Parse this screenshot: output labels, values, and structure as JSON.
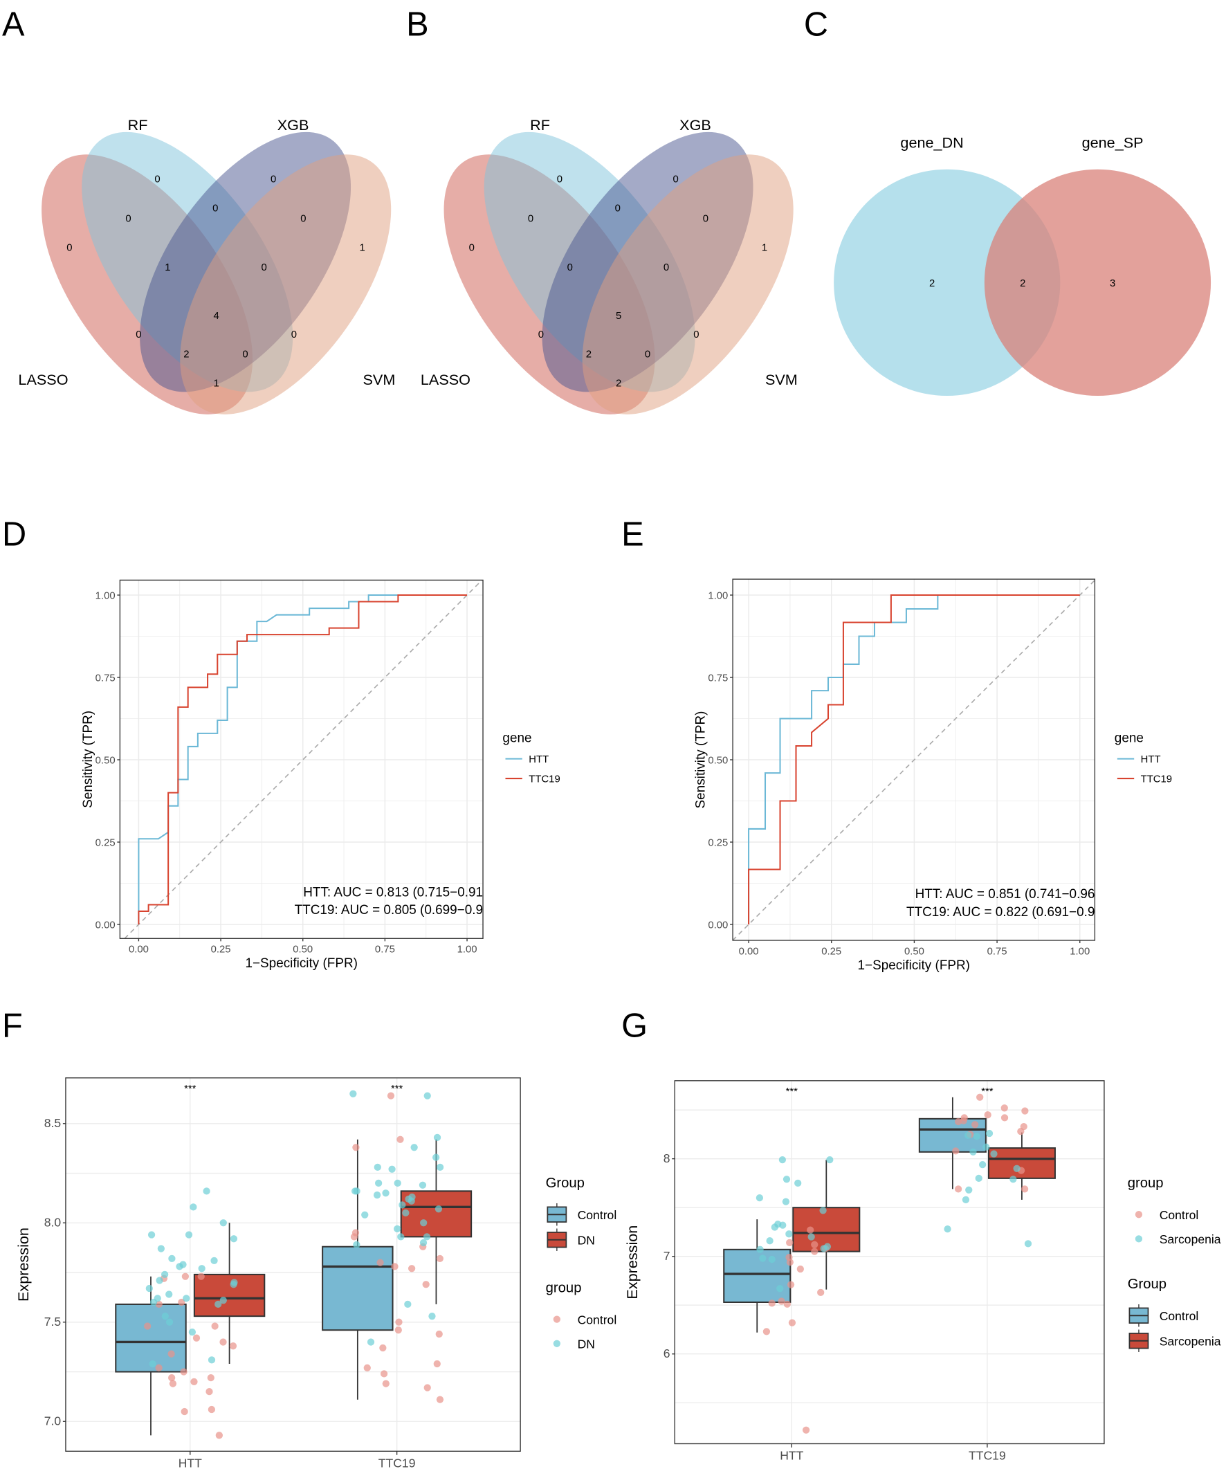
{
  "panel_labels": [
    "A",
    "B",
    "C",
    "D",
    "E",
    "F",
    "G"
  ],
  "colors": {
    "LASSO": "#CD5C50",
    "RF": "#7FC4DC",
    "XGB": "#4A5590",
    "SVM": "#E0A080",
    "gene_DN": "#8ECFE2",
    "gene_SP": "#D9827A",
    "HTT_line": "#6BB8D6",
    "TTC19_line": "#D8432F",
    "box_control": "#78B8D2",
    "box_case": "#C94A3A",
    "point_control": "#E8938A",
    "point_case": "#6CCFD6"
  },
  "venn": [
    {
      "sets": [
        "LASSO",
        "RF",
        "XGB",
        "SVM"
      ],
      "regions": [
        {
          "sets": "RF",
          "count": "0"
        },
        {
          "sets": "XGB",
          "count": "0"
        },
        {
          "sets": "LASSO,RF",
          "count": "0"
        },
        {
          "sets": "RF,XGB",
          "count": "0"
        },
        {
          "sets": "XGB,SVM",
          "count": "0"
        },
        {
          "sets": "LASSO",
          "count": "0"
        },
        {
          "sets": "SVM",
          "count": "1"
        },
        {
          "sets": "LASSO,RF,XGB",
          "count": "1"
        },
        {
          "sets": "RF,XGB,SVM",
          "count": "0"
        },
        {
          "sets": "LASSO,RF,XGB,SVM",
          "count": "4"
        },
        {
          "sets": "LASSO,XGB",
          "count": "0"
        },
        {
          "sets": "RF,SVM",
          "count": "0"
        },
        {
          "sets": "LASSO,XGB,SVM",
          "count": "2"
        },
        {
          "sets": "LASSO,RF,SVM",
          "count": "0"
        },
        {
          "sets": "LASSO,SVM",
          "count": "1"
        }
      ]
    },
    {
      "sets": [
        "LASSO",
        "RF",
        "XGB",
        "SVM"
      ],
      "regions": [
        {
          "sets": "RF",
          "count": "0"
        },
        {
          "sets": "XGB",
          "count": "0"
        },
        {
          "sets": "LASSO,RF",
          "count": "0"
        },
        {
          "sets": "RF,XGB",
          "count": "0"
        },
        {
          "sets": "XGB,SVM",
          "count": "0"
        },
        {
          "sets": "LASSO",
          "count": "0"
        },
        {
          "sets": "SVM",
          "count": "1"
        },
        {
          "sets": "LASSO,RF,XGB",
          "count": "0"
        },
        {
          "sets": "RF,XGB,SVM",
          "count": "0"
        },
        {
          "sets": "LASSO,RF,XGB,SVM",
          "count": "5"
        },
        {
          "sets": "LASSO,XGB",
          "count": "0"
        },
        {
          "sets": "RF,SVM",
          "count": "0"
        },
        {
          "sets": "LASSO,XGB,SVM",
          "count": "2"
        },
        {
          "sets": "LASSO,RF,SVM",
          "count": "0"
        },
        {
          "sets": "LASSO,SVM",
          "count": "2"
        }
      ]
    },
    {
      "sets": [
        "gene_DN",
        "gene_SP"
      ],
      "regions": [
        {
          "sets": "gene_DN",
          "count": "2"
        },
        {
          "sets": "gene_DN,gene_SP",
          "count": "2"
        },
        {
          "sets": "gene_SP",
          "count": "3"
        }
      ]
    }
  ],
  "chart_data": [
    {
      "panel": "D",
      "type": "line",
      "xlabel": "1−Specificity (FPR)",
      "ylabel": "Sensitivity (TPR)",
      "xlim": [
        0,
        1
      ],
      "ylim": [
        0,
        1
      ],
      "xticks": [
        "0.00",
        "0.25",
        "0.50",
        "0.75",
        "1.00"
      ],
      "yticks": [
        "0.00",
        "0.25",
        "0.50",
        "0.75",
        "1.00"
      ],
      "grid": true,
      "legend_title": "gene",
      "legend_position": "right",
      "reference_line": "diagonal dashed",
      "series": [
        {
          "name": "HTT",
          "points": [
            [
              0,
              0
            ],
            [
              0,
              0.26
            ],
            [
              0.06,
              0.26
            ],
            [
              0.09,
              0.28
            ],
            [
              0.09,
              0.36
            ],
            [
              0.12,
              0.36
            ],
            [
              0.12,
              0.44
            ],
            [
              0.15,
              0.44
            ],
            [
              0.15,
              0.54
            ],
            [
              0.18,
              0.54
            ],
            [
              0.18,
              0.58
            ],
            [
              0.24,
              0.58
            ],
            [
              0.24,
              0.62
            ],
            [
              0.27,
              0.62
            ],
            [
              0.27,
              0.72
            ],
            [
              0.3,
              0.72
            ],
            [
              0.3,
              0.86
            ],
            [
              0.36,
              0.86
            ],
            [
              0.36,
              0.92
            ],
            [
              0.39,
              0.92
            ],
            [
              0.42,
              0.94
            ],
            [
              0.52,
              0.94
            ],
            [
              0.52,
              0.96
            ],
            [
              0.64,
              0.96
            ],
            [
              0.64,
              0.98
            ],
            [
              0.7,
              0.98
            ],
            [
              0.7,
              1
            ],
            [
              1,
              1
            ]
          ]
        },
        {
          "name": "TTC19",
          "points": [
            [
              0,
              0
            ],
            [
              0,
              0.04
            ],
            [
              0.03,
              0.04
            ],
            [
              0.03,
              0.06
            ],
            [
              0.09,
              0.06
            ],
            [
              0.09,
              0.4
            ],
            [
              0.12,
              0.4
            ],
            [
              0.12,
              0.66
            ],
            [
              0.15,
              0.66
            ],
            [
              0.15,
              0.72
            ],
            [
              0.21,
              0.72
            ],
            [
              0.21,
              0.76
            ],
            [
              0.24,
              0.76
            ],
            [
              0.24,
              0.82
            ],
            [
              0.3,
              0.82
            ],
            [
              0.3,
              0.86
            ],
            [
              0.33,
              0.86
            ],
            [
              0.33,
              0.88
            ],
            [
              0.58,
              0.88
            ],
            [
              0.58,
              0.9
            ],
            [
              0.67,
              0.9
            ],
            [
              0.67,
              0.98
            ],
            [
              0.79,
              0.98
            ],
            [
              0.79,
              1
            ],
            [
              1,
              1
            ]
          ]
        }
      ],
      "annotations": [
        "HTT: AUC = 0.813 (0.715−0.91",
        "TTC19: AUC = 0.805 (0.699−0.9"
      ]
    },
    {
      "panel": "E",
      "type": "line",
      "xlabel": "1−Specificity (FPR)",
      "ylabel": "Sensitivity (TPR)",
      "xlim": [
        0,
        1
      ],
      "ylim": [
        0,
        1
      ],
      "xticks": [
        "0.00",
        "0.25",
        "0.50",
        "0.75",
        "1.00"
      ],
      "yticks": [
        "0.00",
        "0.25",
        "0.50",
        "0.75",
        "1.00"
      ],
      "grid": true,
      "legend_title": "gene",
      "legend_position": "right",
      "reference_line": "diagonal dashed",
      "series": [
        {
          "name": "HTT",
          "points": [
            [
              0,
              0
            ],
            [
              0,
              0.29
            ],
            [
              0.05,
              0.29
            ],
            [
              0.05,
              0.46
            ],
            [
              0.095,
              0.46
            ],
            [
              0.095,
              0.625
            ],
            [
              0.19,
              0.625
            ],
            [
              0.19,
              0.71
            ],
            [
              0.24,
              0.71
            ],
            [
              0.24,
              0.75
            ],
            [
              0.286,
              0.75
            ],
            [
              0.286,
              0.79
            ],
            [
              0.333,
              0.79
            ],
            [
              0.333,
              0.875
            ],
            [
              0.38,
              0.875
            ],
            [
              0.38,
              0.917
            ],
            [
              0.476,
              0.917
            ],
            [
              0.476,
              0.958
            ],
            [
              0.571,
              0.958
            ],
            [
              0.571,
              1
            ],
            [
              1,
              1
            ]
          ]
        },
        {
          "name": "TTC19",
          "points": [
            [
              0,
              0
            ],
            [
              0,
              0.167
            ],
            [
              0.095,
              0.167
            ],
            [
              0.095,
              0.375
            ],
            [
              0.143,
              0.375
            ],
            [
              0.143,
              0.542
            ],
            [
              0.19,
              0.542
            ],
            [
              0.19,
              0.583
            ],
            [
              0.24,
              0.625
            ],
            [
              0.24,
              0.667
            ],
            [
              0.286,
              0.667
            ],
            [
              0.286,
              0.917
            ],
            [
              0.43,
              0.917
            ],
            [
              0.43,
              1
            ],
            [
              1,
              1
            ]
          ]
        }
      ],
      "annotations": [
        "HTT: AUC = 0.851 (0.741−0.96",
        "TTC19: AUC = 0.822 (0.691−0.9"
      ]
    },
    {
      "panel": "F",
      "type": "box",
      "ylabel": "Expression",
      "categories": [
        "HTT",
        "TTC19"
      ],
      "ylim": [
        6.85,
        8.73
      ],
      "yticks": [
        "7.0",
        "7.5",
        "8.0",
        "8.5"
      ],
      "ytick_values": [
        7.0,
        7.5,
        8.0,
        8.5
      ],
      "grid": true,
      "significance": [
        "***",
        "***"
      ],
      "box_legend_title": "Group",
      "box_groups": [
        "Control",
        "DN"
      ],
      "point_legend_title": "group",
      "point_groups": [
        "Control",
        "DN"
      ],
      "boxes": {
        "Control": [
          {
            "min": 6.93,
            "q1": 7.25,
            "median": 7.4,
            "q3": 7.59,
            "max": 7.73
          },
          {
            "min": 7.11,
            "q1": 7.46,
            "median": 7.78,
            "q3": 7.88,
            "max": 8.42
          }
        ],
        "DN": [
          {
            "min": 7.29,
            "q1": 7.53,
            "median": 7.62,
            "q3": 7.74,
            "max": 8.0
          },
          {
            "min": 7.59,
            "q1": 7.93,
            "median": 8.08,
            "q3": 8.16,
            "max": 8.42
          }
        ]
      },
      "points": {
        "Control": [
          [
            7.73,
            7.73,
            7.72,
            7.6,
            7.59,
            7.48,
            7.48,
            7.42,
            7.4,
            7.38,
            7.34,
            7.27,
            7.25,
            7.22,
            7.22,
            7.2,
            7.19,
            7.15,
            7.06,
            7.05,
            6.93
          ],
          [
            8.64,
            8.42,
            8.38,
            7.95,
            7.93,
            7.88,
            7.82,
            7.8,
            7.78,
            7.77,
            7.69,
            7.5,
            7.46,
            7.44,
            7.37,
            7.29,
            7.27,
            7.24,
            7.19,
            7.17,
            7.11
          ]
        ],
        "DN": [
          [
            8.16,
            8.08,
            8.0,
            7.94,
            7.94,
            7.92,
            7.87,
            7.82,
            7.81,
            7.79,
            7.78,
            7.77,
            7.74,
            7.71,
            7.7,
            7.69,
            7.67,
            7.64,
            7.62,
            7.62,
            7.61,
            7.6,
            7.59,
            7.53,
            7.5,
            7.45,
            7.31,
            7.29
          ],
          [
            8.65,
            8.64,
            8.43,
            8.38,
            8.33,
            8.28,
            8.28,
            8.27,
            8.2,
            8.2,
            8.19,
            8.16,
            8.16,
            8.15,
            8.14,
            8.13,
            8.12,
            8.11,
            8.09,
            8.07,
            8.05,
            8.04,
            8.0,
            7.97,
            7.93,
            7.93,
            7.9,
            7.89,
            7.59,
            7.53,
            7.4
          ]
        ]
      }
    },
    {
      "panel": "G",
      "type": "box",
      "ylabel": "Expression",
      "categories": [
        "HTT",
        "TTC19"
      ],
      "ylim": [
        5.08,
        8.8
      ],
      "yticks": [
        "6",
        "7",
        "8"
      ],
      "ytick_values": [
        6,
        7,
        8
      ],
      "grid": true,
      "significance": [
        "***",
        "***"
      ],
      "box_legend_title": "Group",
      "box_groups": [
        "Control",
        "Sarcopenia"
      ],
      "point_legend_title": "group",
      "point_groups": [
        "Control",
        "Sarcopenia"
      ],
      "boxes": {
        "Control": [
          {
            "min": 6.22,
            "q1": 6.53,
            "median": 6.82,
            "q3": 7.07,
            "max": 7.38
          },
          {
            "min": 7.69,
            "q1": 8.07,
            "median": 8.3,
            "q3": 8.41,
            "max": 8.63
          }
        ],
        "Sarcopenia": [
          {
            "min": 6.66,
            "q1": 7.05,
            "median": 7.24,
            "q3": 7.5,
            "max": 7.99
          },
          {
            "min": 7.58,
            "q1": 7.8,
            "median": 8.0,
            "q3": 8.11,
            "max": 8.27
          }
        ]
      },
      "points": {
        "Control": [
          [
            7.27,
            7.14,
            7.12,
            7.08,
            7.05,
            6.99,
            6.94,
            6.87,
            6.71,
            6.63,
            6.54,
            6.52,
            6.51,
            6.32,
            6.23,
            5.22
          ],
          [
            8.63,
            8.52,
            8.49,
            8.45,
            8.42,
            8.42,
            8.39,
            8.38,
            8.35,
            8.33,
            8.28,
            8.25,
            8.08,
            7.88,
            7.69,
            7.69
          ]
        ],
        "Sarcopenia": [
          [
            7.99,
            7.99,
            7.79,
            7.75,
            7.6,
            7.56,
            7.47,
            7.33,
            7.32,
            7.3,
            7.23,
            7.2,
            7.16,
            7.1,
            7.08,
            7.07,
            6.98,
            6.97,
            6.67
          ],
          [
            8.26,
            8.24,
            8.23,
            8.12,
            8.07,
            8.05,
            7.94,
            7.9,
            7.8,
            7.79,
            7.68,
            7.58,
            7.28,
            7.13
          ]
        ]
      }
    }
  ]
}
